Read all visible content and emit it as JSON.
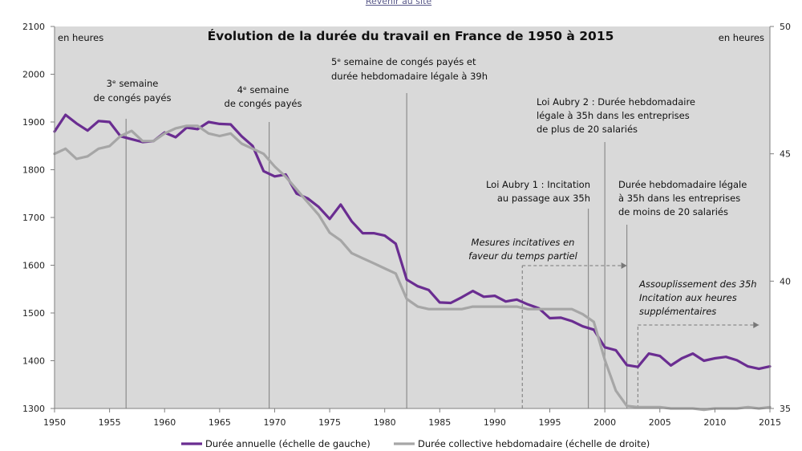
{
  "link": {
    "label": "Revenir au site"
  },
  "chart_data": {
    "type": "line",
    "title": "Évolution de la durée du travail en France de 1950 à 2015",
    "left_unit": "en heures",
    "right_unit": "en heures",
    "xlim": [
      1950,
      2015
    ],
    "ylim_left": [
      1300,
      2100
    ],
    "ylim_right": [
      35,
      50
    ],
    "x_ticks": [
      "1950",
      "1955",
      "1960",
      "1965",
      "1970",
      "1975",
      "1980",
      "1985",
      "1990",
      "1995",
      "2000",
      "2005",
      "2010",
      "2015"
    ],
    "y_ticks_left": [
      "1300",
      "1400",
      "1500",
      "1600",
      "1700",
      "1800",
      "1900",
      "2000",
      "2100"
    ],
    "y_ticks_right": [
      "35",
      "40",
      "45",
      "50"
    ],
    "series": [
      {
        "name": "Durée annuelle (échelle de gauche)",
        "axis": "left",
        "color": "#6a2d91",
        "x": [
          1950,
          1951,
          1952,
          1953,
          1954,
          1955,
          1956,
          1957,
          1958,
          1959,
          1960,
          1961,
          1962,
          1963,
          1964,
          1965,
          1966,
          1967,
          1968,
          1969,
          1970,
          1971,
          1972,
          1973,
          1974,
          1975,
          1976,
          1977,
          1978,
          1979,
          1980,
          1981,
          1982,
          1983,
          1984,
          1985,
          1986,
          1987,
          1988,
          1989,
          1990,
          1991,
          1992,
          1993,
          1994,
          1995,
          1996,
          1997,
          1998,
          1999,
          2000,
          2001,
          2002,
          2003,
          2004,
          2005,
          2006,
          2007,
          2008,
          2009,
          2010,
          2011,
          2012,
          2013,
          2014,
          2015
        ],
        "values": [
          1880,
          1915,
          1897,
          1882,
          1902,
          1900,
          1870,
          1864,
          1858,
          1860,
          1878,
          1868,
          1888,
          1885,
          1900,
          1896,
          1895,
          1870,
          1850,
          1797,
          1786,
          1790,
          1750,
          1740,
          1722,
          1697,
          1727,
          1692,
          1667,
          1667,
          1662,
          1645,
          1570,
          1556,
          1548,
          1522,
          1521,
          1533,
          1546,
          1534,
          1536,
          1524,
          1528,
          1518,
          1510,
          1489,
          1490,
          1483,
          1472,
          1465,
          1428,
          1422,
          1391,
          1387,
          1415,
          1410,
          1390,
          1405,
          1415,
          1400,
          1405,
          1408,
          1401,
          1388,
          1383,
          1388
        ]
      },
      {
        "name": "Durée collective hebdomadaire (échelle de droite)",
        "axis": "right",
        "color": "#a6a6a6",
        "x": [
          1950,
          1951,
          1952,
          1953,
          1954,
          1955,
          1956,
          1957,
          1958,
          1959,
          1960,
          1961,
          1962,
          1963,
          1964,
          1965,
          1966,
          1967,
          1968,
          1969,
          1970,
          1971,
          1972,
          1973,
          1974,
          1975,
          1976,
          1977,
          1978,
          1979,
          1980,
          1981,
          1982,
          1983,
          1984,
          1985,
          1986,
          1987,
          1988,
          1989,
          1990,
          1991,
          1992,
          1993,
          1994,
          1995,
          1996,
          1997,
          1998,
          1999,
          2000,
          2001,
          2002,
          2003,
          2004,
          2005,
          2006,
          2007,
          2008,
          2009,
          2010,
          2011,
          2012,
          2013,
          2014,
          2015
        ],
        "values": [
          45.0,
          45.2,
          44.8,
          44.9,
          45.2,
          45.3,
          45.7,
          45.9,
          45.5,
          45.5,
          45.8,
          46.0,
          46.1,
          46.1,
          45.8,
          45.7,
          45.8,
          45.4,
          45.2,
          45.0,
          44.5,
          44.1,
          43.6,
          43.1,
          42.6,
          41.9,
          41.6,
          41.1,
          40.9,
          40.7,
          40.5,
          40.3,
          39.3,
          39.0,
          38.9,
          38.9,
          38.9,
          38.9,
          39.0,
          39.0,
          39.0,
          39.0,
          39.0,
          38.9,
          38.9,
          38.9,
          38.9,
          38.9,
          38.7,
          38.4,
          36.9,
          35.7,
          35.1,
          35.05,
          35.05,
          35.05,
          35.0,
          35.0,
          35.0,
          34.95,
          35.0,
          35.0,
          35.0,
          35.05,
          35.0,
          35.05
        ]
      }
    ],
    "events": [
      {
        "year": 1956.5,
        "label_lines": [
          "3ᵉ semaine",
          "de congés payés"
        ]
      },
      {
        "year": 1969.5,
        "label_lines": [
          "4ᵉ semaine",
          "de congés payés"
        ]
      },
      {
        "year": 1982,
        "label_lines": [
          "5ᵉ semaine de congés payés et",
          "durée hebdomadaire légale à 39h"
        ]
      },
      {
        "year": 1998.5,
        "label_lines": [
          "Loi Aubry 1 : Incitation",
          "au passage aux 35h"
        ]
      },
      {
        "year": 2000,
        "label_lines": [
          "Loi Aubry 2 : Durée hebdomadaire",
          "légale à 35h dans les entreprises",
          "de plus de 20 salariés"
        ]
      },
      {
        "year": 2002,
        "label_lines": [
          "Durée hebdomadaire légale",
          "à 35h dans les entreprises",
          "de moins de 20 salariés"
        ]
      }
    ],
    "periods": [
      {
        "start": 1992.5,
        "end": 2002,
        "label_lines": [
          "Mesures incitatives en",
          "faveur du temps partiel"
        ]
      },
      {
        "start": 2003,
        "end": 2014,
        "label_lines": [
          "Assouplissement des 35h",
          "Incitation aux heures",
          "supplémentaires"
        ]
      }
    ]
  }
}
